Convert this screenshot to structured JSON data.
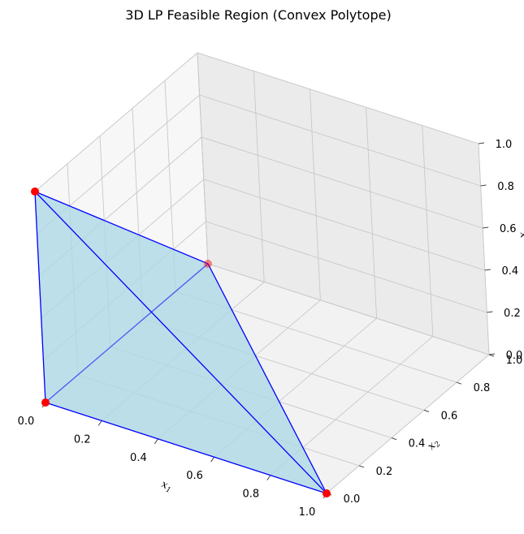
{
  "chart_data": {
    "type": "3d-polytope",
    "title": "3D LP Feasible Region (Convex Polytope)",
    "xlabel": "x",
    "xlabel_sub": "1",
    "ylabel": "x",
    "ylabel_sub": "2",
    "zlabel": "x",
    "xlim": [
      0,
      1
    ],
    "ylim": [
      0,
      1
    ],
    "zlim": [
      0,
      1
    ],
    "x_ticks": [
      "0.0",
      "0.2",
      "0.4",
      "0.6",
      "0.8",
      "1.0"
    ],
    "y_ticks": [
      "0.0",
      "0.2",
      "0.4",
      "0.6",
      "0.8",
      "1.0"
    ],
    "z_ticks": [
      "0.0",
      "0.2",
      "0.4",
      "0.6",
      "0.8",
      "1.0"
    ],
    "grid": true,
    "vertices": [
      {
        "x": 0,
        "y": 0,
        "z": 0
      },
      {
        "x": 1,
        "y": 0,
        "z": 0
      },
      {
        "x": 0,
        "y": 1,
        "z": 0
      },
      {
        "x": 0,
        "y": 0,
        "z": 1
      }
    ],
    "edges": [
      [
        0,
        1
      ],
      [
        0,
        2
      ],
      [
        0,
        3
      ],
      [
        1,
        2
      ],
      [
        1,
        3
      ],
      [
        2,
        3
      ]
    ],
    "colors": {
      "face": "#add8e6",
      "edge": "#0000ff",
      "vertex": "#ff0000"
    }
  }
}
